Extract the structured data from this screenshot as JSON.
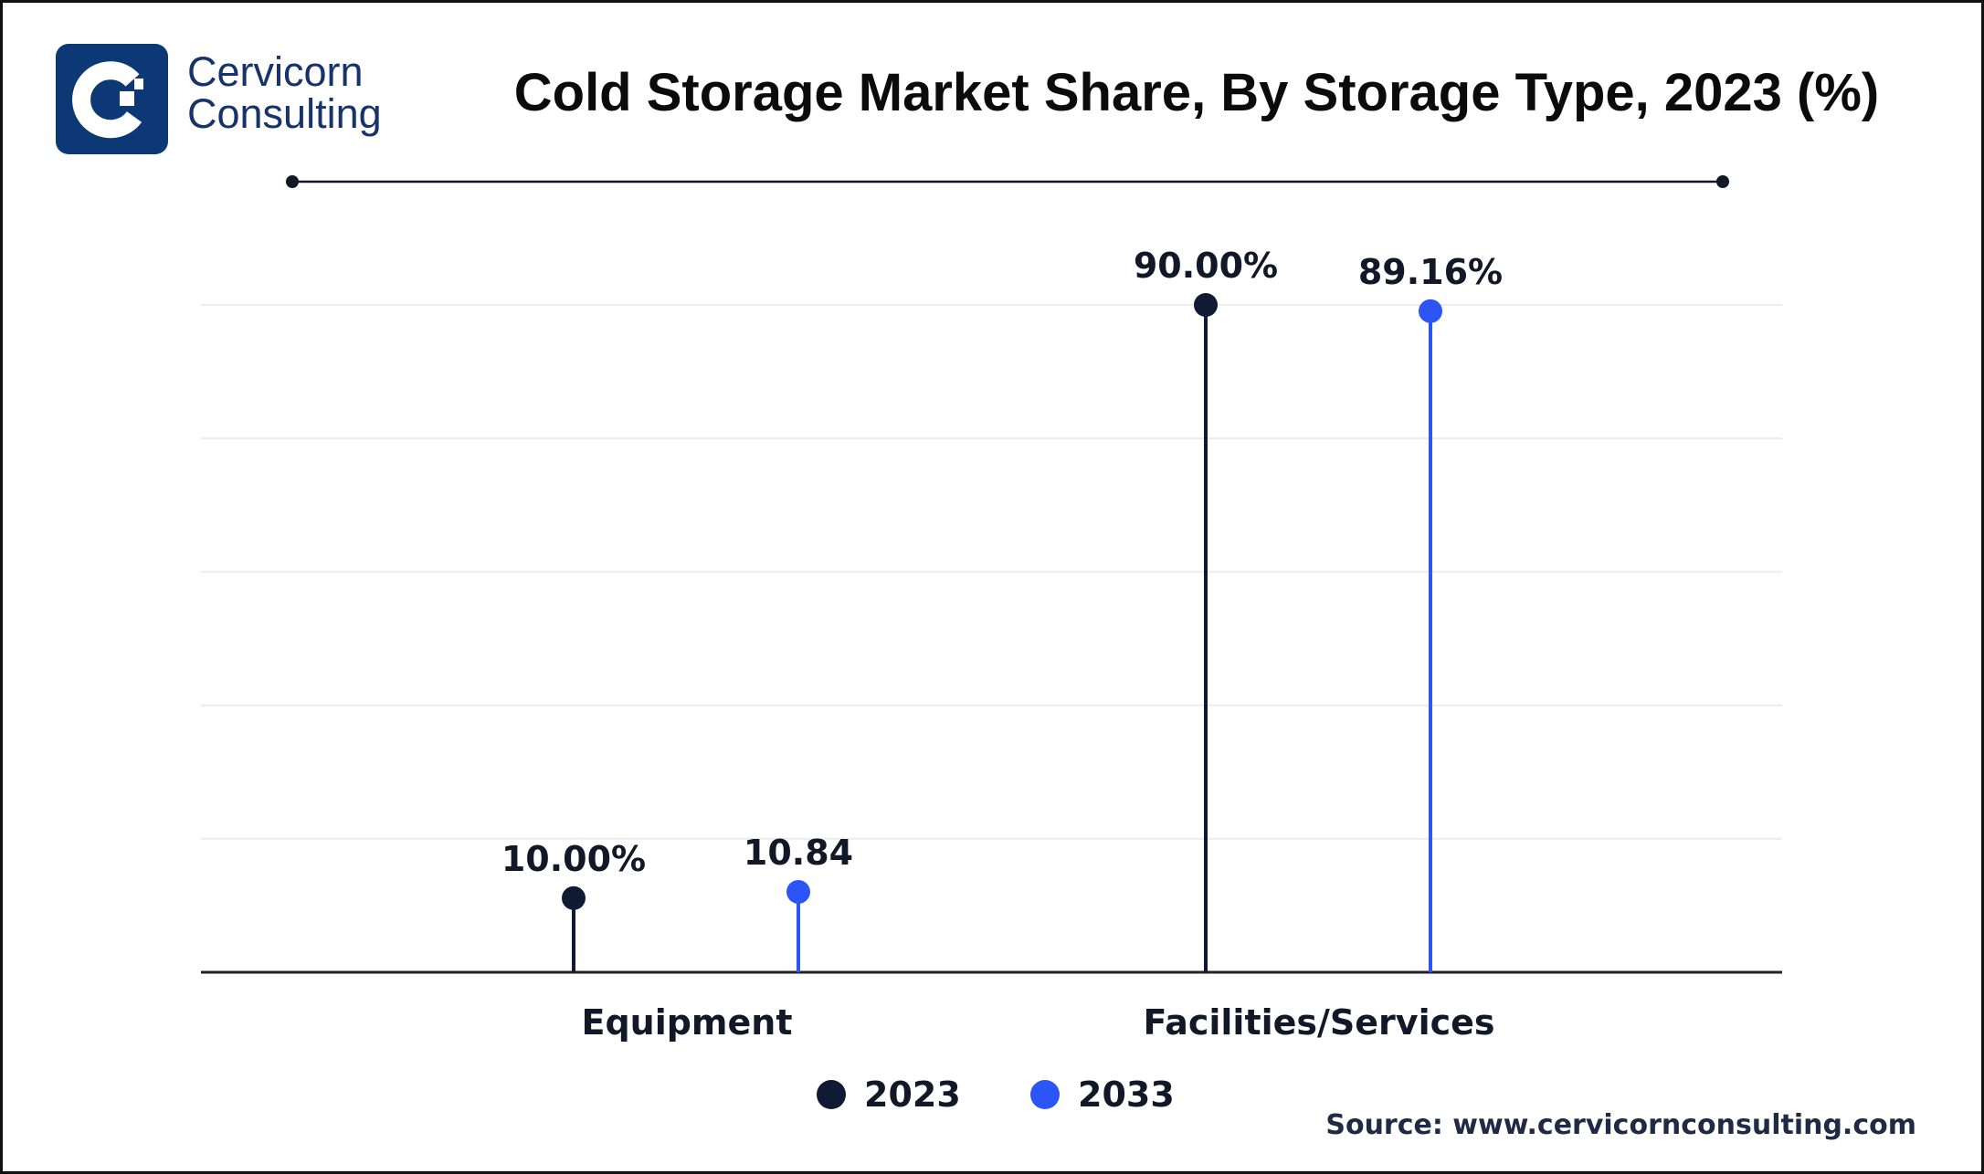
{
  "brand": {
    "name_line1": "Cervicorn",
    "name_line2": "Consulting",
    "logo_color": "#0d3876"
  },
  "title": "Cold Storage Market Share, By Storage Type, 2023 (%)",
  "source": "Source: www.cervicornconsulting.com",
  "chart_data": {
    "type": "lollipop",
    "title": "Cold Storage Market Share, By Storage Type, 2023 (%)",
    "categories": [
      "Equipment",
      "Facilities/Services"
    ],
    "series": [
      {
        "name": "2023",
        "color": "#111a33",
        "values": [
          10.0,
          90.0
        ],
        "labels": [
          "10.00%",
          "90.00%"
        ]
      },
      {
        "name": "2033",
        "color": "#2b55f6",
        "values": [
          10.84,
          89.16
        ],
        "labels": [
          "10.84",
          "89.16%"
        ]
      }
    ],
    "ylim": [
      0,
      90
    ],
    "grid": true,
    "legend_placement": "bottom"
  }
}
